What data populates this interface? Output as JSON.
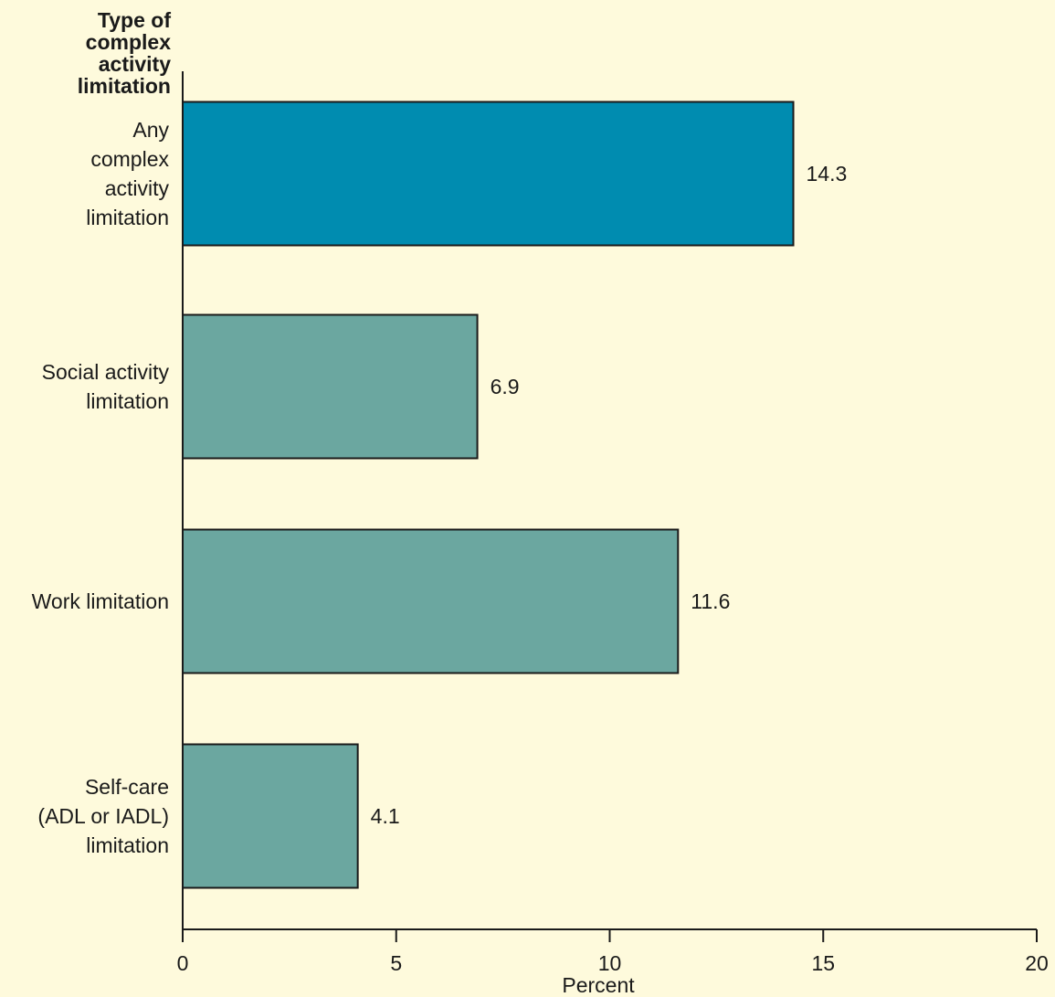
{
  "chart_data": {
    "type": "bar",
    "orientation": "horizontal",
    "ylabel": [
      "Type of",
      "complex",
      "activity",
      "limitation"
    ],
    "xlabel": "Percent",
    "categories": [
      [
        "Any",
        "complex",
        "activity",
        "limitation"
      ],
      [
        "Social activity",
        "limitation"
      ],
      [
        "Work limitation"
      ],
      [
        "Self-care",
        "(ADL or IADL)",
        "limitation"
      ]
    ],
    "values": [
      14.3,
      6.9,
      11.6,
      4.1
    ],
    "value_labels": [
      "14.3",
      "6.9",
      "11.6",
      "4.1"
    ],
    "xlim": [
      0,
      20
    ],
    "xticks": [
      0,
      5,
      10,
      15,
      20
    ],
    "xtick_labels": [
      "0",
      "5",
      "10",
      "15",
      "20"
    ],
    "grid": false,
    "colors": {
      "highlight": "#008cb0",
      "bar": "#6ba7a0",
      "axis": "#1a1a1a",
      "background": "#fefadc"
    }
  }
}
